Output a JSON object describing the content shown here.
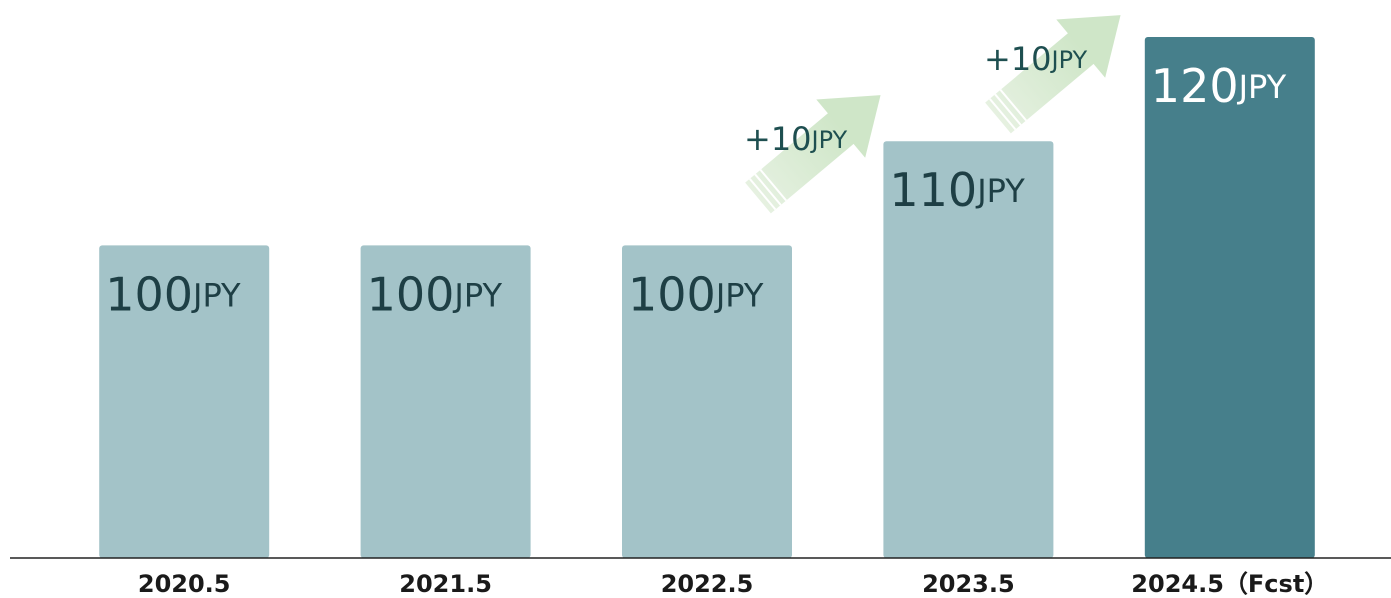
{
  "chart_data": {
    "type": "bar",
    "categories": [
      "2020.5",
      "2021.5",
      "2022.5",
      "2023.5",
      "2024.5（Fcst）"
    ],
    "values": [
      100,
      100,
      100,
      110,
      120
    ],
    "value_labels": [
      "100JPY",
      "100JPY",
      "100JPY",
      "110JPY",
      "120JPY"
    ],
    "colors": [
      "#a3c3c8",
      "#a3c3c8",
      "#a3c3c8",
      "#a3c3c8",
      "#467f8b"
    ],
    "ylim": [
      70,
      120
    ],
    "annotations": [
      "+10JPY",
      "+10JPY"
    ]
  }
}
